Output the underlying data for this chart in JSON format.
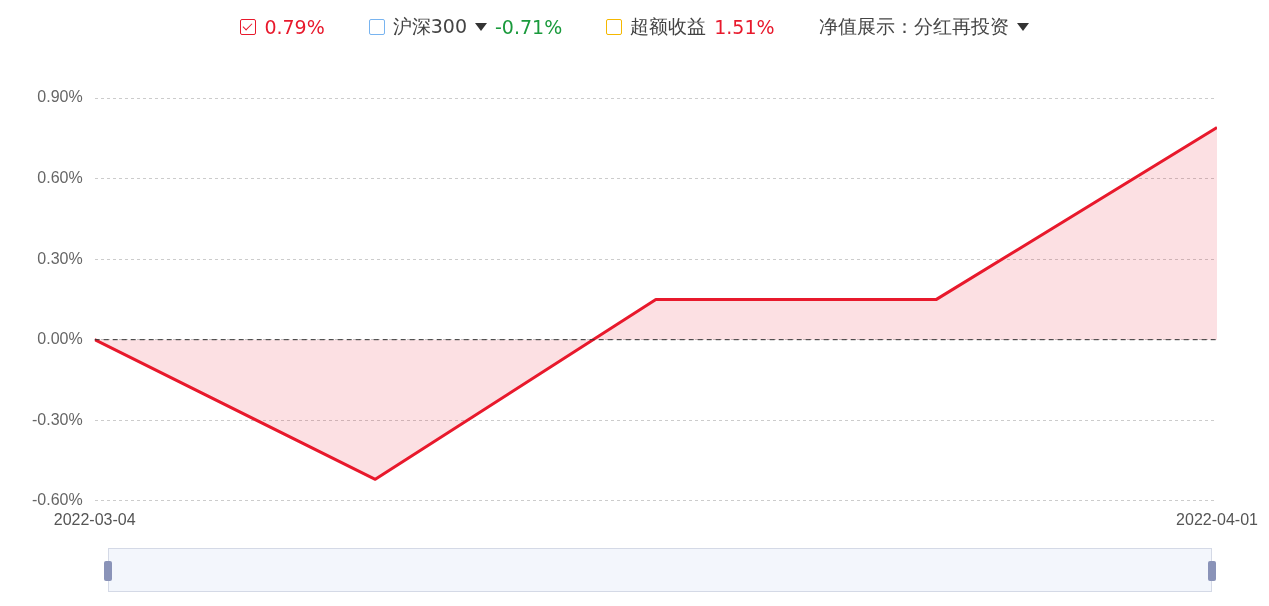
{
  "chart_data": {
    "type": "area",
    "x": [
      "2022-03-04",
      "2022-03-11",
      "2022-03-18",
      "2022-03-25",
      "2022-04-01"
    ],
    "xlim": [
      "2022-03-04",
      "2022-04-01"
    ],
    "xticks": [
      "2022-03-04",
      "2022-04-01"
    ],
    "series": [
      {
        "color": "#e8192c",
        "values": [
          0,
          -0.52,
          0.15,
          0.15,
          0.79
        ]
      }
    ],
    "ylim": [
      -0.6,
      0.9
    ],
    "yticks": [
      {
        "value": -0.6,
        "label": "-0.60%"
      },
      {
        "value": -0.3,
        "label": "-0.30%"
      },
      {
        "value": 0,
        "label": "0.00%"
      },
      {
        "value": 0.3,
        "label": "0.30%"
      },
      {
        "value": 0.6,
        "label": "0.60%"
      },
      {
        "value": 0.9,
        "label": "0.90%"
      }
    ],
    "grid": "y",
    "ref_lines": [
      {
        "axis": "y",
        "value": 0,
        "color": "#333333",
        "line_style": "dashed"
      }
    ],
    "annotations": [
      "0.79%",
      "沪深300",
      "-0.71%",
      "超额收益",
      "1.51%",
      "净值展示：分红再投资"
    ]
  }
}
